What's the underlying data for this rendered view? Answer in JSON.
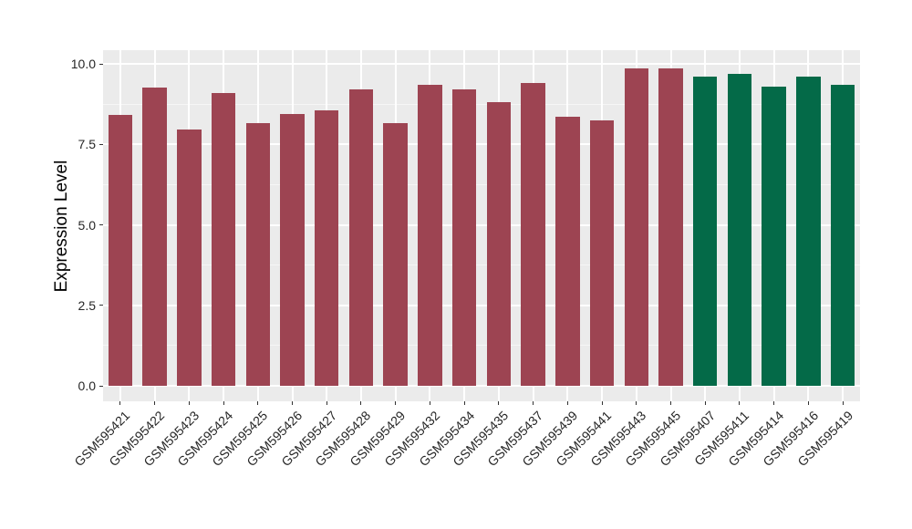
{
  "chart_data": {
    "type": "bar",
    "title": "",
    "xlabel": "",
    "ylabel": "Expression Level",
    "ylim": [
      0,
      10.4
    ],
    "yticks": [
      0.0,
      2.5,
      5.0,
      7.5,
      10.0
    ],
    "ytick_labels": [
      "0.0",
      "2.5",
      "5.0",
      "7.5",
      "10.0"
    ],
    "grid": {
      "major": "on",
      "minor": "on",
      "gridline_color": "#FFFFFF"
    },
    "legend_position": "none",
    "panel_background": "#EBEBEB",
    "bar_width_fraction": 0.7,
    "x_label_rotation_deg": 45,
    "group_palette": {
      "maroon": "#9D4452",
      "green": "#046A48"
    },
    "categories": [
      "GSM595421",
      "GSM595422",
      "GSM595423",
      "GSM595424",
      "GSM595425",
      "GSM595426",
      "GSM595427",
      "GSM595428",
      "GSM595429",
      "GSM595432",
      "GSM595434",
      "GSM595435",
      "GSM595437",
      "GSM595439",
      "GSM595441",
      "GSM595443",
      "GSM595445",
      "GSM595407",
      "GSM595411",
      "GSM595414",
      "GSM595416",
      "GSM595419"
    ],
    "values": [
      8.4,
      9.25,
      7.95,
      9.1,
      8.15,
      8.45,
      8.55,
      9.2,
      8.15,
      9.35,
      9.2,
      8.8,
      9.4,
      8.35,
      8.25,
      9.85,
      9.85,
      9.6,
      9.7,
      9.3,
      9.6,
      9.35
    ],
    "colors": [
      "#9D4452",
      "#9D4452",
      "#9D4452",
      "#9D4452",
      "#9D4452",
      "#9D4452",
      "#9D4452",
      "#9D4452",
      "#9D4452",
      "#9D4452",
      "#9D4452",
      "#9D4452",
      "#9D4452",
      "#9D4452",
      "#9D4452",
      "#9D4452",
      "#9D4452",
      "#046A48",
      "#046A48",
      "#046A48",
      "#046A48",
      "#046A48"
    ]
  }
}
